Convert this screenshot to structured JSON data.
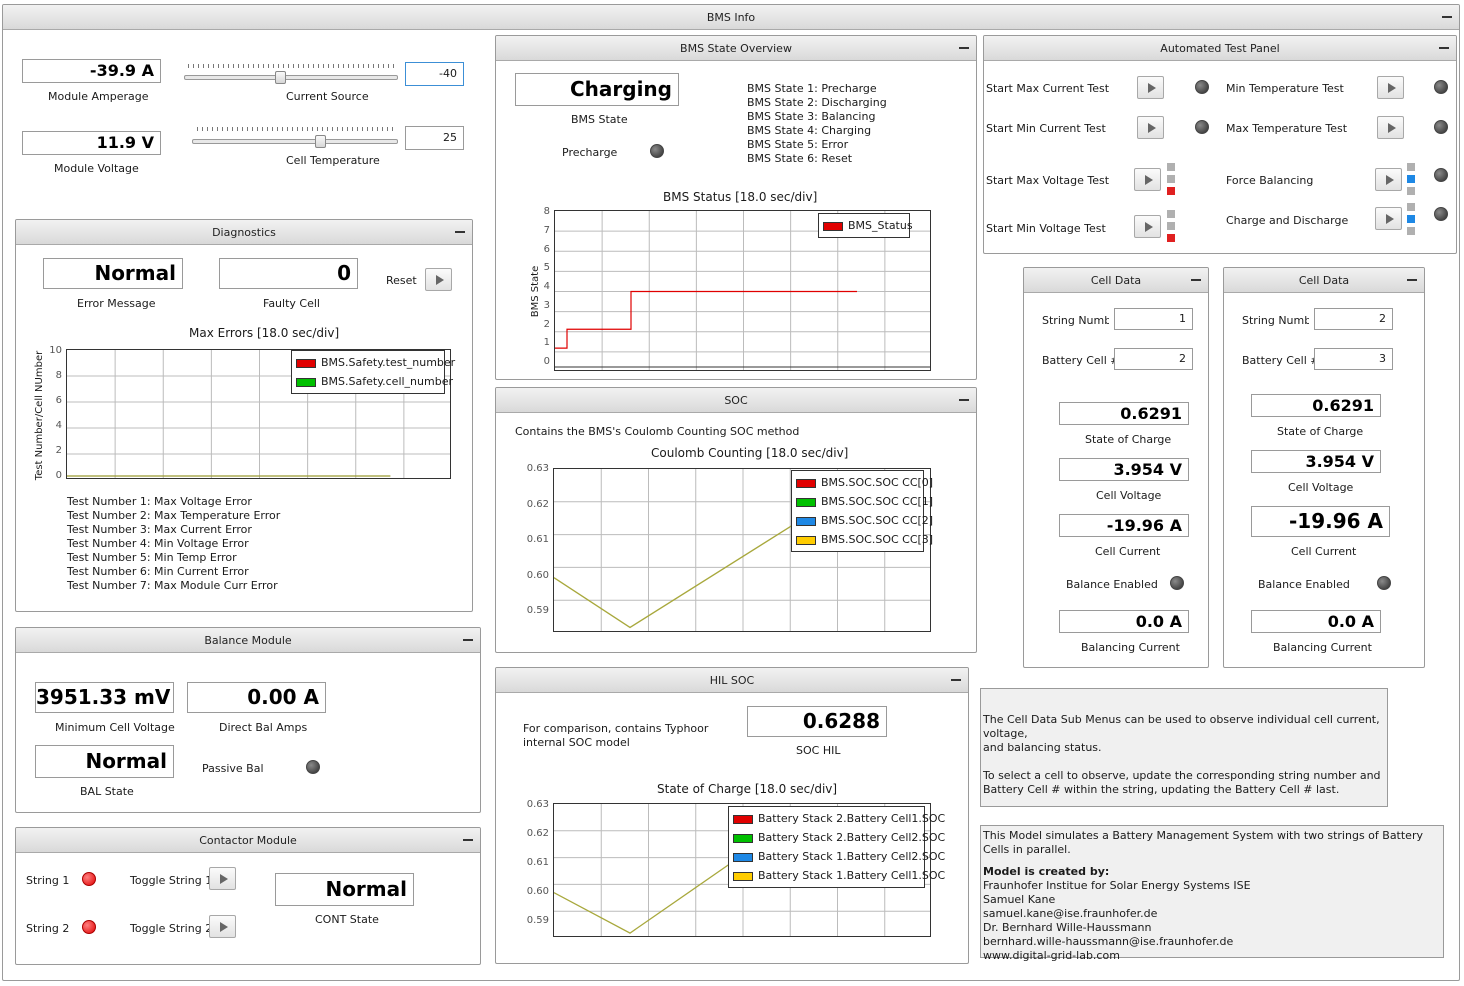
{
  "window": {
    "title": "BMS Info"
  },
  "top": {
    "module_amperage": "-39.9 A",
    "module_amperage_label": "Module Amperage",
    "current_source_label": "Current Source",
    "current_source_value": "-40",
    "module_voltage": "11.9 V",
    "module_voltage_label": "Module Voltage",
    "cell_temperature_label": "Cell Temperature",
    "cell_temperature_value": "25",
    "current_source_level": 0.45,
    "cell_temperature_level": 0.62
  },
  "diagnostics": {
    "title": "Diagnostics",
    "error_message": "Normal",
    "error_message_label": "Error Message",
    "faulty_cell": "0",
    "faulty_cell_label": "Faulty Cell",
    "reset_label": "Reset",
    "tests": [
      "Test Number 1: Max Voltage Error",
      "Test Number 2: Max Temperature Error",
      "Test Number 3: Max Current Error",
      "Test Number 4: Min Voltage Error",
      "Test Number 5: Min Temp Error",
      "Test Number 6: Min Current Error",
      "Test Number 7: Max Module Curr Error"
    ]
  },
  "balance": {
    "title": "Balance Module",
    "min_cell_voltage": "3951.33 mV",
    "min_cell_voltage_label": "Minimum Cell Voltage",
    "direct_bal_amps": "0.00 A",
    "direct_bal_amps_label": "Direct Bal Amps",
    "bal_state": "Normal",
    "bal_state_label": "BAL State",
    "passive_bal_label": "Passive Bal"
  },
  "contactor": {
    "title": "Contactor Module",
    "string1_label": "String 1",
    "string2_label": "String 2",
    "toggle1_label": "Toggle String 1",
    "toggle2_label": "Toggle String 2",
    "cont_state": "Normal",
    "cont_state_label": "CONT State"
  },
  "bms_state": {
    "title": "BMS State Overview",
    "state": "Charging",
    "state_label": "BMS State",
    "precharge_label": "Precharge",
    "states": [
      "BMS State 1: Precharge",
      "BMS State 2: Discharging",
      "BMS State 3: Balancing",
      "BMS State 4: Charging",
      "BMS State 5: Error",
      "BMS State 6: Reset"
    ]
  },
  "soc": {
    "title": "SOC",
    "description": "Contains the BMS's Coulomb Counting SOC method"
  },
  "hil_soc": {
    "title": "HIL SOC",
    "description_1": "For comparison, contains Typhoor",
    "description_2": "internal SOC model",
    "soc_hil": "0.6288",
    "soc_hil_label": "SOC HIL"
  },
  "auto_test": {
    "title": "Automated Test Panel",
    "items": [
      "Start Max Current Test",
      "Min Temperature Test",
      "Start Min Current Test",
      "Max Temperature Test",
      "Start Max Voltage Test",
      "Force Balancing",
      "Start Min Voltage Test",
      "Charge and Discharge"
    ]
  },
  "cell_data": [
    {
      "title": "Cell Data",
      "string_number_label": "String Number",
      "string_number": "1",
      "battery_cell_label": "Battery Cell #",
      "battery_cell": "2",
      "soc": "0.6291",
      "soc_label": "State of Charge",
      "voltage": "3.954 V",
      "voltage_label": "Cell Voltage",
      "current": "-19.96 A",
      "current_label": "Cell Current",
      "balance_enabled_label": "Balance Enabled",
      "balancing_current": "0.0 A",
      "balancing_current_label": "Balancing Current"
    },
    {
      "title": "Cell Data",
      "string_number_label": "String Number",
      "string_number": "2",
      "battery_cell_label": "Battery Cell #",
      "battery_cell": "3",
      "soc": "0.6291",
      "soc_label": "State of Charge",
      "voltage": "3.954 V",
      "voltage_label": "Cell Voltage",
      "current": "-19.96 A",
      "current_label": "Cell Current",
      "balance_enabled_label": "Balance Enabled",
      "balancing_current": "0.0 A",
      "balancing_current_label": "Balancing Current"
    }
  ],
  "info1": [
    "The Cell Data Sub Menus can be used to observe individual cell current, voltage,",
    "and balancing status.",
    "",
    "To select a cell to observe, update the corresponding string number and",
    "Battery Cell # within the string, updating the Battery Cell # last."
  ],
  "info2": {
    "line1": "This Model simulates a Battery Management System with two strings of Battery Cells in parallel.",
    "created_by": "Model is created by:",
    "lines": [
      "Fraunhofer Institue for Solar Energy Systems ISE",
      "Samuel Kane",
      "samuel.kane@ise.fraunhofer.de",
      "Dr. Bernhard Wille-Haussmann",
      "bernhard.wille-haussmann@ise.fraunhofer.de",
      "www.digital-grid-lab.com"
    ]
  },
  "chart_data": [
    {
      "type": "line",
      "title": "Max Errors [18.0 sec/div]",
      "ylabel": "Test Number/Cell NUmber",
      "ylim": [
        0,
        10
      ],
      "yticks": [
        0,
        2,
        4,
        6,
        8,
        10
      ],
      "series": [
        {
          "name": "BMS.Safety.test_number",
          "color": "#e00000",
          "values": [
            0,
            0
          ]
        },
        {
          "name": "BMS.Safety.cell_number",
          "color": "#00c000",
          "values": [
            0,
            0
          ]
        }
      ]
    },
    {
      "type": "line",
      "title": "BMS Status [18.0 sec/div]",
      "ylabel": "BMS State",
      "ylim": [
        0,
        8
      ],
      "yticks": [
        0,
        1,
        2,
        3,
        4,
        5,
        6,
        7,
        8
      ],
      "series": [
        {
          "name": "BMS_Status",
          "color": "#e00000",
          "values": [
            1,
            2,
            2,
            4,
            4
          ]
        }
      ]
    },
    {
      "type": "line",
      "title": "Coulomb Counting [18.0 sec/div]",
      "ylim": [
        0.585,
        0.63
      ],
      "yticks": [
        "0.59",
        "0.60",
        "0.61",
        "0.62",
        "0.63"
      ],
      "series": [
        {
          "name": "BMS.SOC.SOC CC[0]",
          "color": "#e00000"
        },
        {
          "name": "BMS.SOC.SOC CC[1]",
          "color": "#00c000"
        },
        {
          "name": "BMS.SOC.SOC CC[2]",
          "color": "#1e88e5"
        },
        {
          "name": "BMS.SOC.SOC CC[3]",
          "color": "#ffcc00",
          "values": [
            0.6,
            0.586,
            0.615
          ]
        }
      ]
    },
    {
      "type": "line",
      "title": "State of Charge [18.0 sec/div]",
      "ylim": [
        0.585,
        0.63
      ],
      "yticks": [
        "0.59",
        "0.60",
        "0.61",
        "0.62",
        "0.63"
      ],
      "series": [
        {
          "name": "Battery Stack 2.Battery Cell1.SOC",
          "color": "#e00000"
        },
        {
          "name": "Battery Stack 2.Battery Cell2.SOC",
          "color": "#00c000"
        },
        {
          "name": "Battery Stack 1.Battery Cell2.SOC",
          "color": "#1e88e5"
        },
        {
          "name": "Battery Stack 1.Battery Cell1.SOC",
          "color": "#ffcc00",
          "values": [
            0.6,
            0.586,
            0.61
          ]
        }
      ]
    }
  ]
}
